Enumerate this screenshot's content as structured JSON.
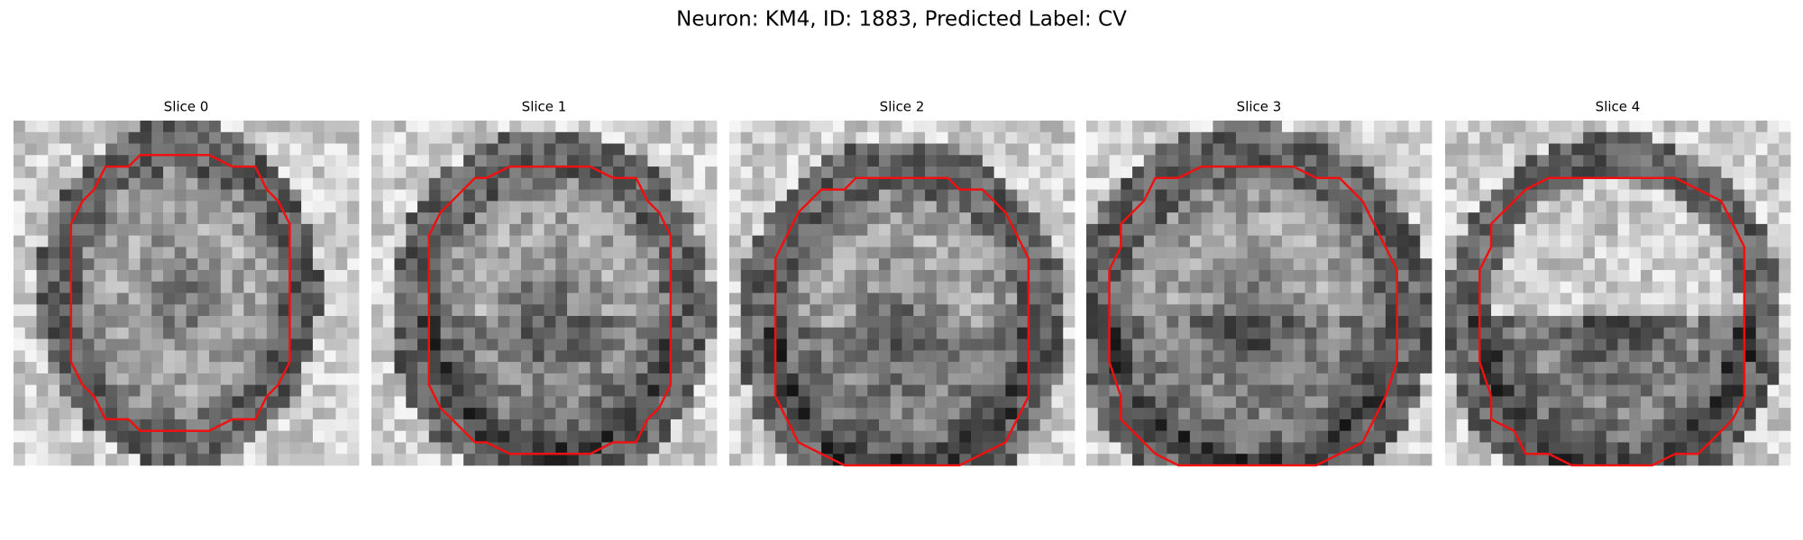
{
  "header": {
    "title": "Neuron: KM4, ID: 1883, Predicted Label: CV"
  },
  "panels": [
    {
      "title": "Slice 0"
    },
    {
      "title": "Slice 1"
    },
    {
      "title": "Slice 2"
    },
    {
      "title": "Slice 3"
    },
    {
      "title": "Slice 4"
    }
  ]
}
